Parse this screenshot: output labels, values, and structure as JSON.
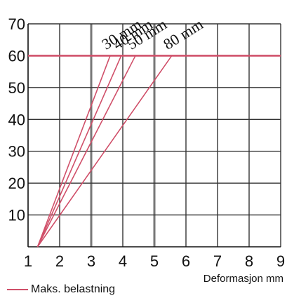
{
  "chart_data": {
    "type": "line",
    "title": "",
    "xlabel": "Deformasjon mm",
    "ylabel": "",
    "xlim": [
      1,
      9
    ],
    "ylim": [
      0,
      70
    ],
    "x_ticks": [
      1,
      2,
      3,
      4,
      5,
      6,
      7,
      8,
      9
    ],
    "y_ticks": [
      10,
      20,
      30,
      40,
      50,
      60,
      70
    ],
    "grid": true,
    "series": [
      {
        "name": "30 mm",
        "points": [
          [
            1.3,
            0
          ],
          [
            3.6,
            60
          ]
        ]
      },
      {
        "name": "40 mm",
        "points": [
          [
            1.3,
            0
          ],
          [
            3.95,
            60
          ]
        ]
      },
      {
        "name": "50 mm",
        "points": [
          [
            1.3,
            0
          ],
          [
            4.4,
            60
          ]
        ]
      },
      {
        "name": "80 mm",
        "points": [
          [
            1.3,
            0
          ],
          [
            5.55,
            60
          ]
        ]
      }
    ],
    "reference_lines": [
      {
        "name": "Maks. belastning",
        "y": 60
      }
    ],
    "legend": {
      "position": "bottom-left",
      "label": "Maks. belastning"
    },
    "colors": {
      "line": "#d0506a",
      "grid": "#333333",
      "background": "#ffffff"
    }
  }
}
